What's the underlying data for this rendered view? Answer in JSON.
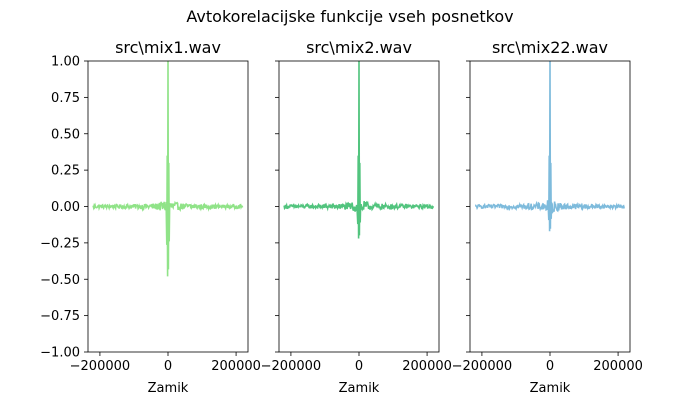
{
  "figure_title": "Avtokorelacijske funkcije vseh posnetkov",
  "chart_data": [
    {
      "type": "line",
      "title": "src\\mix1.wav",
      "xlabel": "Zamik",
      "ylabel": "",
      "color": "#90e388",
      "xlim": [
        -235000,
        235000
      ],
      "ylim": [
        -1.0,
        1.0
      ],
      "xticks": [
        -200000,
        0,
        200000
      ],
      "xtick_labels": [
        "−200000",
        "0",
        "200000"
      ],
      "yticks": [
        1.0,
        0.75,
        0.5,
        0.25,
        0.0,
        -0.25,
        -0.5,
        -0.75,
        -1.0
      ],
      "ytick_labels": [
        "1.00",
        "0.75",
        "0.50",
        "0.25",
        "0.00",
        "−0.25",
        "−0.50",
        "−0.75",
        "−1.00"
      ],
      "show_yticklabels": true,
      "extent": [
        -220000,
        220000
      ],
      "peak": 1.0,
      "min_near_zero": -0.48,
      "noise_amplitude": 0.012,
      "grid": false
    },
    {
      "type": "line",
      "title": "src\\mix2.wav",
      "xlabel": "Zamik",
      "ylabel": "",
      "color": "#52c47e",
      "xlim": [
        -235000,
        235000
      ],
      "ylim": [
        -1.0,
        1.0
      ],
      "xticks": [
        -200000,
        0,
        200000
      ],
      "xtick_labels": [
        "−200000",
        "0",
        "200000"
      ],
      "yticks": [
        1.0,
        0.75,
        0.5,
        0.25,
        0.0,
        -0.25,
        -0.5,
        -0.75,
        -1.0
      ],
      "ytick_labels": [],
      "show_yticklabels": false,
      "extent": [
        -220000,
        220000
      ],
      "peak": 1.0,
      "min_near_zero": -0.22,
      "noise_amplitude": 0.012,
      "grid": false
    },
    {
      "type": "line",
      "title": "src\\mix22.wav",
      "xlabel": "Zamik",
      "ylabel": "",
      "color": "#7ebbdc",
      "xlim": [
        -235000,
        235000
      ],
      "ylim": [
        -1.0,
        1.0
      ],
      "xticks": [
        -200000,
        0,
        200000
      ],
      "xtick_labels": [
        "−200000",
        "0",
        "200000"
      ],
      "yticks": [
        1.0,
        0.75,
        0.5,
        0.25,
        0.0,
        -0.25,
        -0.5,
        -0.75,
        -1.0
      ],
      "ytick_labels": [],
      "show_yticklabels": false,
      "extent": [
        -220000,
        220000
      ],
      "peak": 1.0,
      "min_near_zero": -0.17,
      "noise_amplitude": 0.012,
      "grid": false
    }
  ]
}
